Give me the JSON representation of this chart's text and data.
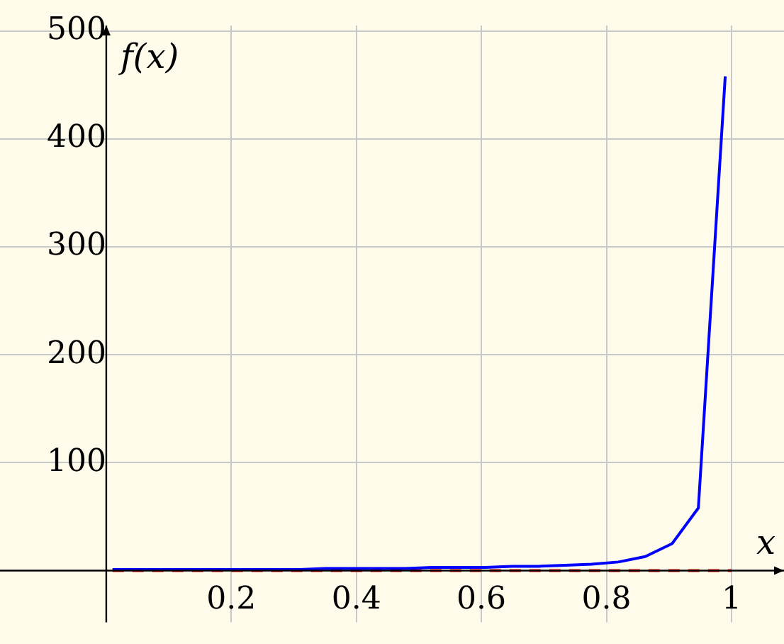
{
  "chart_data": {
    "type": "line",
    "xlabel": "x",
    "ylabel": "f(x)",
    "xlim": [
      -0.17,
      1.084
    ],
    "ylim": [
      -48,
      505
    ],
    "xticks": [
      0.2,
      0.4,
      0.6,
      0.8,
      1
    ],
    "yticks": [
      100,
      200,
      300,
      400,
      500
    ],
    "grid": true,
    "legend": false,
    "marker": "none",
    "series": [
      {
        "color": "#0000ff",
        "x": [
          0.01,
          0.053,
          0.096,
          0.139,
          0.181,
          0.224,
          0.266,
          0.309,
          0.351,
          0.394,
          0.436,
          0.479,
          0.521,
          0.564,
          0.606,
          0.649,
          0.691,
          0.734,
          0.776,
          0.819,
          0.862,
          0.905,
          0.947,
          0.99
        ],
        "values": [
          1,
          1,
          1,
          1,
          1,
          1,
          1,
          1,
          2,
          2,
          2,
          2,
          3,
          3,
          3,
          4,
          4,
          5,
          6,
          8,
          13,
          25,
          58,
          458
        ]
      },
      {
        "color": "#ff0000",
        "line_style": "dashed",
        "x": [
          0.01,
          1
        ],
        "values": [
          0,
          0
        ]
      }
    ]
  }
}
